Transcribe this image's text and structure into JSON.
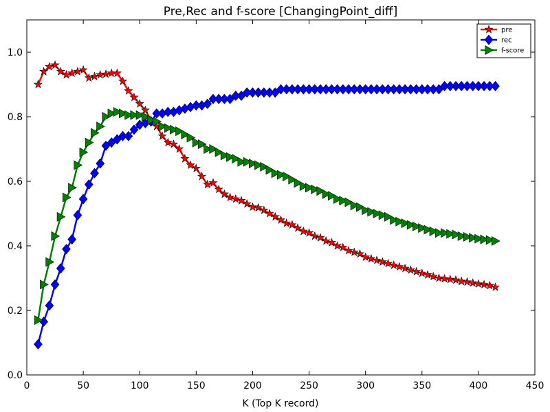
{
  "chart_data": {
    "type": "line",
    "title": "Pre,Rec and f-score [ChangingPoint_diff]",
    "xlabel": "K (Top K record)",
    "ylabel": "",
    "xlim": [
      0,
      450
    ],
    "ylim": [
      0.0,
      1.1
    ],
    "xticks": [
      0,
      50,
      100,
      150,
      200,
      250,
      300,
      350,
      400,
      450
    ],
    "yticks": [
      0.0,
      0.2,
      0.4,
      0.6,
      0.8,
      1.0
    ],
    "grid": false,
    "legend": "top-right",
    "x": [
      10,
      15,
      20,
      25,
      30,
      35,
      40,
      45,
      50,
      55,
      60,
      65,
      70,
      75,
      80,
      85,
      90,
      95,
      100,
      105,
      110,
      115,
      120,
      125,
      130,
      135,
      140,
      145,
      150,
      155,
      160,
      165,
      170,
      175,
      180,
      185,
      190,
      195,
      200,
      205,
      210,
      215,
      220,
      225,
      230,
      235,
      240,
      245,
      250,
      255,
      260,
      265,
      270,
      275,
      280,
      285,
      290,
      295,
      300,
      305,
      310,
      315,
      320,
      325,
      330,
      335,
      340,
      345,
      350,
      355,
      360,
      365,
      370,
      375,
      380,
      385,
      390,
      395,
      400,
      405,
      410,
      415
    ],
    "series": [
      {
        "name": "pre",
        "color": "#ff0000",
        "marker": "star",
        "values": [
          0.9,
          0.94,
          0.955,
          0.96,
          0.94,
          0.93,
          0.935,
          0.94,
          0.945,
          0.92,
          0.925,
          0.93,
          0.932,
          0.935,
          0.935,
          0.91,
          0.88,
          0.86,
          0.84,
          0.82,
          0.79,
          0.77,
          0.74,
          0.72,
          0.715,
          0.7,
          0.67,
          0.65,
          0.64,
          0.615,
          0.59,
          0.595,
          0.575,
          0.56,
          0.55,
          0.545,
          0.54,
          0.53,
          0.52,
          0.518,
          0.51,
          0.5,
          0.49,
          0.48,
          0.47,
          0.465,
          0.455,
          0.445,
          0.44,
          0.43,
          0.425,
          0.415,
          0.41,
          0.4,
          0.395,
          0.385,
          0.38,
          0.375,
          0.365,
          0.36,
          0.355,
          0.35,
          0.345,
          0.34,
          0.335,
          0.33,
          0.325,
          0.32,
          0.315,
          0.31,
          0.305,
          0.3,
          0.298,
          0.296,
          0.294,
          0.29,
          0.288,
          0.285,
          0.282,
          0.28,
          0.277,
          0.272
        ]
      },
      {
        "name": "rec",
        "color": "#0000ff",
        "marker": "diamond",
        "values": [
          0.095,
          0.165,
          0.215,
          0.28,
          0.33,
          0.39,
          0.42,
          0.495,
          0.545,
          0.59,
          0.625,
          0.655,
          0.71,
          0.72,
          0.73,
          0.74,
          0.74,
          0.76,
          0.775,
          0.78,
          0.785,
          0.81,
          0.81,
          0.815,
          0.815,
          0.82,
          0.825,
          0.83,
          0.835,
          0.835,
          0.84,
          0.855,
          0.855,
          0.855,
          0.855,
          0.865,
          0.865,
          0.875,
          0.875,
          0.875,
          0.875,
          0.875,
          0.875,
          0.885,
          0.885,
          0.885,
          0.885,
          0.885,
          0.885,
          0.885,
          0.885,
          0.885,
          0.885,
          0.885,
          0.885,
          0.885,
          0.885,
          0.885,
          0.885,
          0.885,
          0.885,
          0.885,
          0.885,
          0.885,
          0.885,
          0.885,
          0.885,
          0.885,
          0.885,
          0.885,
          0.885,
          0.885,
          0.895,
          0.895,
          0.895,
          0.895,
          0.895,
          0.895,
          0.895,
          0.895,
          0.895,
          0.895
        ]
      },
      {
        "name": "f-score",
        "color": "#008000",
        "marker": "triangle-right",
        "values": [
          0.17,
          0.28,
          0.35,
          0.43,
          0.49,
          0.55,
          0.58,
          0.65,
          0.69,
          0.72,
          0.75,
          0.77,
          0.8,
          0.81,
          0.815,
          0.81,
          0.805,
          0.805,
          0.805,
          0.8,
          0.79,
          0.785,
          0.77,
          0.765,
          0.76,
          0.755,
          0.745,
          0.735,
          0.72,
          0.715,
          0.7,
          0.7,
          0.69,
          0.68,
          0.675,
          0.67,
          0.66,
          0.66,
          0.655,
          0.65,
          0.645,
          0.635,
          0.625,
          0.62,
          0.615,
          0.605,
          0.595,
          0.585,
          0.58,
          0.575,
          0.57,
          0.56,
          0.555,
          0.545,
          0.54,
          0.535,
          0.525,
          0.52,
          0.51,
          0.505,
          0.5,
          0.495,
          0.49,
          0.48,
          0.475,
          0.47,
          0.465,
          0.46,
          0.455,
          0.45,
          0.445,
          0.44,
          0.44,
          0.437,
          0.435,
          0.43,
          0.428,
          0.425,
          0.422,
          0.42,
          0.418,
          0.415
        ]
      }
    ]
  }
}
